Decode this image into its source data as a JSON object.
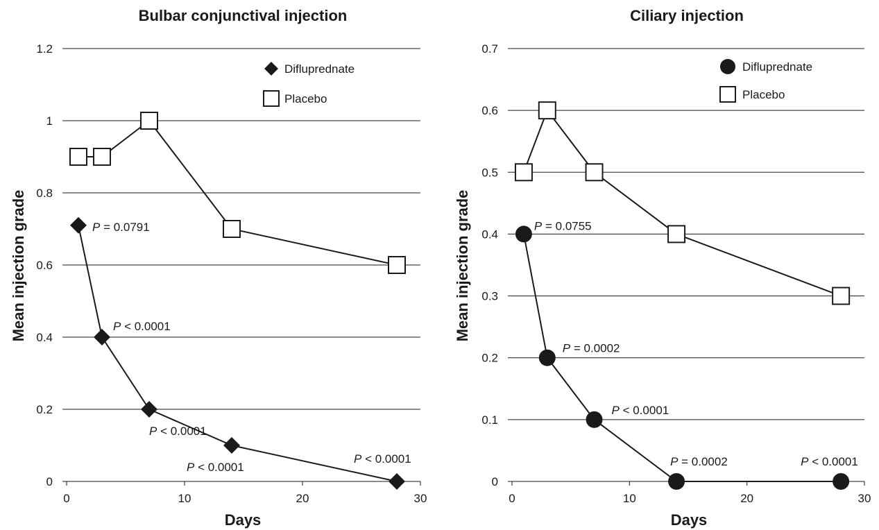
{
  "chart_data": [
    {
      "type": "line",
      "title": "Bulbar conjunctival injection",
      "xlabel": "Days",
      "ylabel": "Mean injection grade",
      "xlim": [
        0,
        30
      ],
      "ylim": [
        0,
        1.2
      ],
      "x_ticks": [
        "0",
        "10",
        "20",
        "30"
      ],
      "y_ticks": [
        "0",
        "0.2",
        "0.4",
        "0.6",
        "0.8",
        "1",
        "1.2"
      ],
      "grid": "horizontal",
      "legend_position": "top-right",
      "series": [
        {
          "name": "Difluprednate",
          "marker": "diamond",
          "x": [
            1,
            3,
            7,
            14,
            28
          ],
          "y": [
            0.71,
            0.4,
            0.2,
            0.1,
            0
          ],
          "p_values": [
            "= 0.0791",
            "< 0.0001",
            "< 0.0001",
            "< 0.0001",
            "< 0.0001"
          ]
        },
        {
          "name": "Placebo",
          "marker": "square",
          "x": [
            1,
            3,
            7,
            14,
            28
          ],
          "y": [
            0.9,
            0.9,
            1.0,
            0.7,
            0.6
          ]
        }
      ]
    },
    {
      "type": "line",
      "title": "Ciliary injection",
      "xlabel": "Days",
      "ylabel": "Mean injection grade",
      "xlim": [
        0,
        30
      ],
      "ylim": [
        0,
        0.7
      ],
      "x_ticks": [
        "0",
        "10",
        "20",
        "30"
      ],
      "y_ticks": [
        "0",
        "0.1",
        "0.2",
        "0.3",
        "0.4",
        "0.5",
        "0.6",
        "0.7"
      ],
      "grid": "horizontal",
      "legend_position": "top-right",
      "series": [
        {
          "name": "Difluprednate",
          "marker": "circle",
          "x": [
            1,
            3,
            7,
            14,
            28
          ],
          "y": [
            0.4,
            0.2,
            0.1,
            0,
            0
          ],
          "p_values": [
            "= 0.0755",
            "= 0.0002",
            "< 0.0001",
            "= 0.0002",
            "< 0.0001"
          ]
        },
        {
          "name": "Placebo",
          "marker": "square",
          "x": [
            1,
            3,
            7,
            14,
            28
          ],
          "y": [
            0.5,
            0.6,
            0.5,
            0.4,
            0.3
          ]
        }
      ]
    }
  ]
}
